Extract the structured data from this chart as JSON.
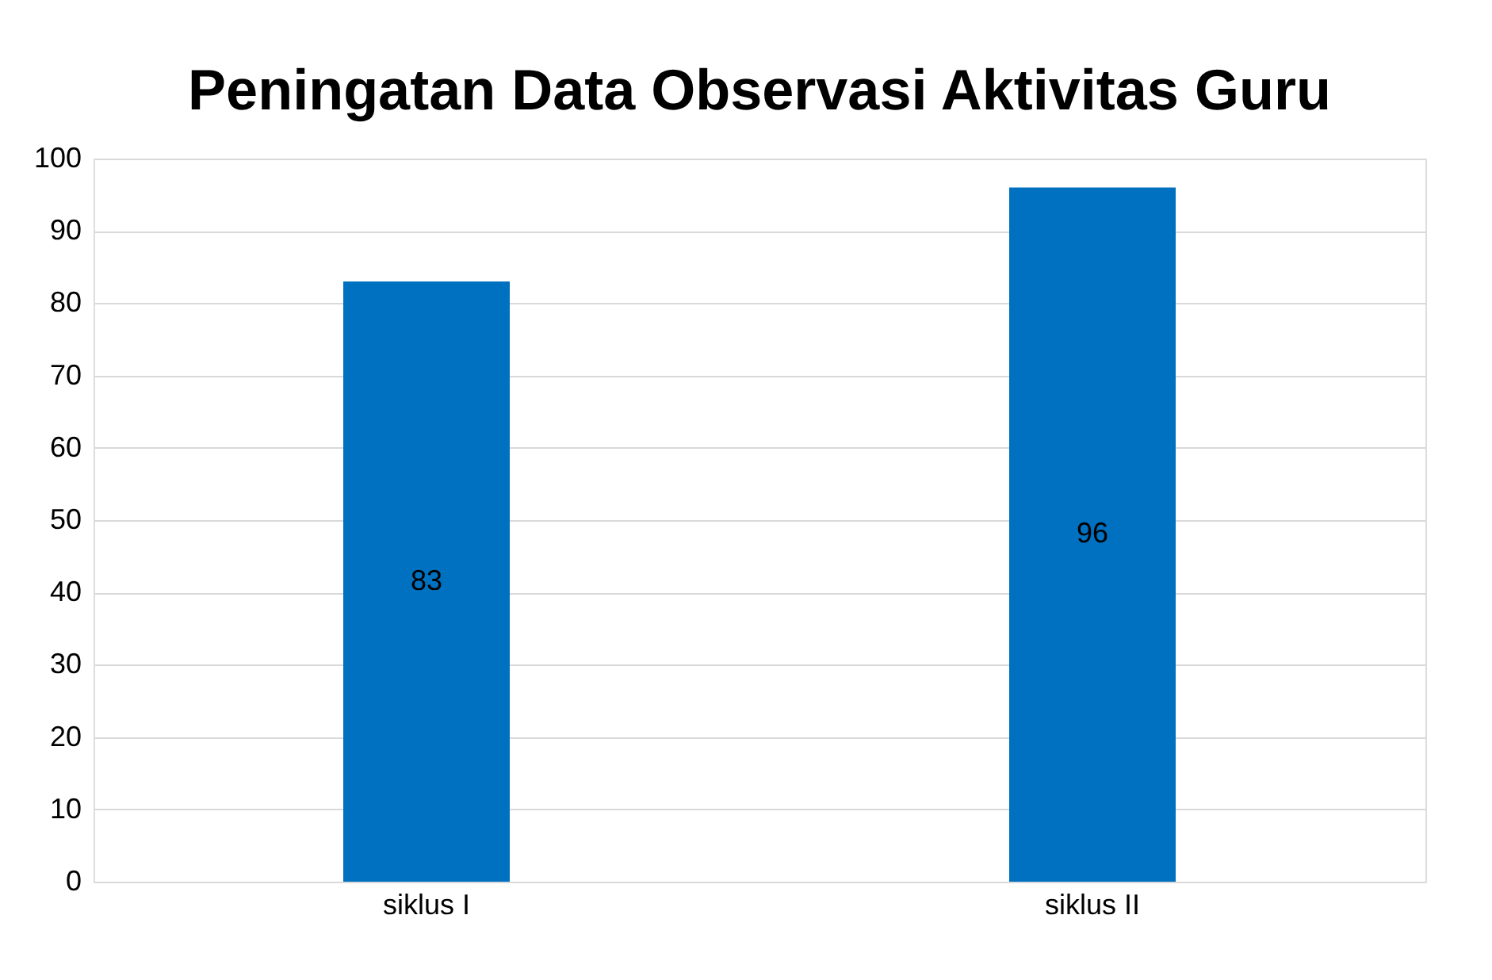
{
  "chart_data": {
    "type": "bar",
    "title": "Peningatan Data Observasi Aktivitas Guru",
    "categories": [
      "siklus I",
      "siklus II"
    ],
    "values": [
      83,
      96
    ],
    "color": "#0070c0",
    "ylim": [
      0,
      100
    ],
    "yticks": [
      0,
      10,
      20,
      30,
      40,
      50,
      60,
      70,
      80,
      90,
      100
    ],
    "grid": "y",
    "data_labels": true
  }
}
